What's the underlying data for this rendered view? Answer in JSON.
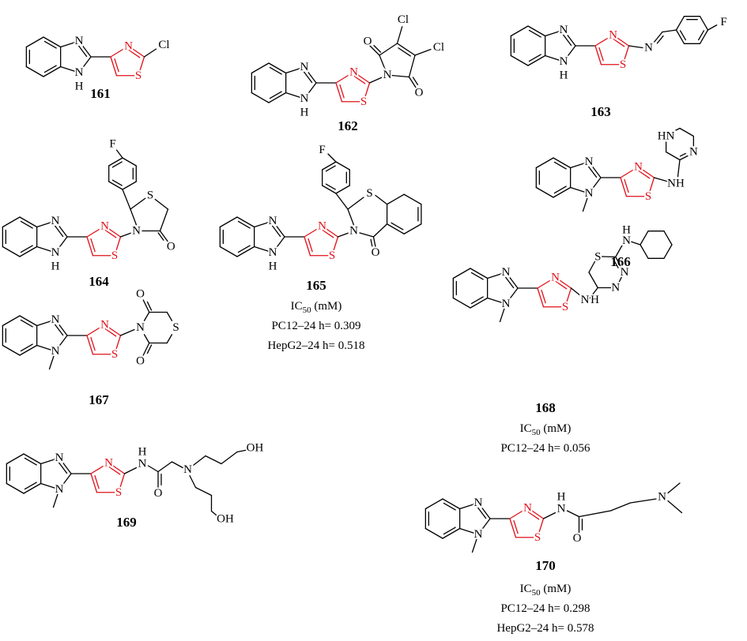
{
  "compounds": [
    {
      "number": "161",
      "atoms": [
        "N",
        "N",
        "H",
        "N",
        "S",
        "Cl"
      ]
    },
    {
      "number": "162",
      "atoms": [
        "N",
        "N",
        "H",
        "N",
        "S",
        "N",
        "O",
        "O",
        "Cl",
        "Cl"
      ]
    },
    {
      "number": "163",
      "atoms": [
        "N",
        "N",
        "H",
        "N",
        "S",
        "N",
        "F"
      ]
    },
    {
      "number": "164",
      "atoms": [
        "N",
        "N",
        "H",
        "N",
        "S",
        "N",
        "S",
        "O",
        "F"
      ]
    },
    {
      "number": "165",
      "atoms": [
        "N",
        "N",
        "H",
        "N",
        "S",
        "N",
        "S",
        "O",
        "F"
      ],
      "activity": {
        "heading": {
          "base": "IC",
          "sub": "50",
          "unit": " (mM)"
        },
        "lines": [
          "PC12–24 h= 0.309",
          "HepG2–24 h= 0.518"
        ]
      }
    },
    {
      "number": "166",
      "atoms": [
        "N",
        "N",
        "N",
        "S",
        "NH",
        "N",
        "HN"
      ]
    },
    {
      "number": "167",
      "atoms": [
        "N",
        "N",
        "N",
        "S",
        "N",
        "O",
        "O",
        "S"
      ]
    },
    {
      "number": "168",
      "atoms": [
        "N",
        "N",
        "N",
        "S",
        "N",
        "H",
        "S",
        "N",
        "N",
        "N",
        "H"
      ],
      "activity": {
        "heading": {
          "base": "IC",
          "sub": "50",
          "unit": " (mM)"
        },
        "lines": [
          "PC12–24 h= 0.056"
        ]
      }
    },
    {
      "number": "169",
      "atoms": [
        "N",
        "N",
        "N",
        "S",
        "H",
        "N",
        "O",
        "N",
        "OH",
        "OH"
      ]
    },
    {
      "number": "170",
      "atoms": [
        "N",
        "N",
        "N",
        "S",
        "H",
        "N",
        "O",
        "N"
      ],
      "activity": {
        "heading": {
          "base": "IC",
          "sub": "50",
          "unit": " (mM)"
        },
        "lines": [
          "PC12–24 h= 0.298",
          "HepG2–24 h= 0.578"
        ]
      }
    }
  ]
}
